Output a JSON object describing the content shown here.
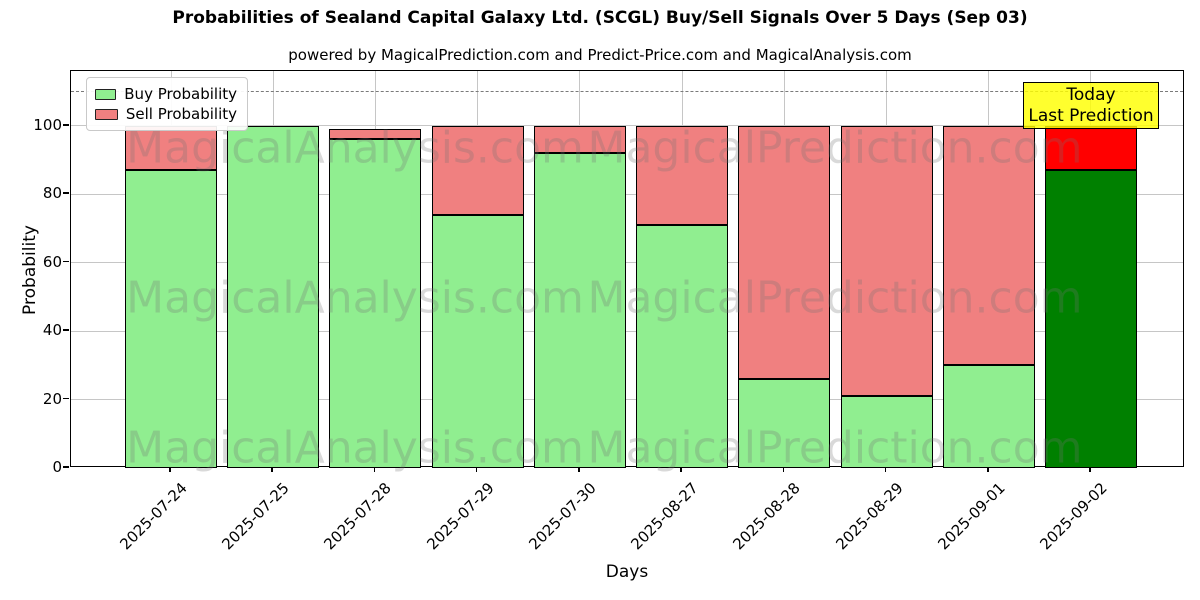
{
  "title": "Probabilities of Sealand Capital Galaxy Ltd. (SCGL) Buy/Sell Signals Over 5 Days (Sep 03)",
  "subtitle": "powered by MagicalPrediction.com and Predict-Price.com and MagicalAnalysis.com",
  "legend": {
    "buy_label": "Buy Probability",
    "sell_label": "Sell Probability"
  },
  "annotation": {
    "line1": "Today",
    "line2": "Last Prediction"
  },
  "watermarks": {
    "left_text": "MagicalAnalysis.com",
    "right_text": "MagicalPrediction.com"
  },
  "colors": {
    "buy": "#90ee90",
    "sell": "#f08080",
    "buy_today": "#008000",
    "sell_today": "#ff0000",
    "annotation_bg": "#ffff00",
    "grid": "#c6c6c6",
    "dashed_line": "#7a7a7a"
  },
  "chart_data": {
    "type": "bar",
    "stacked": true,
    "title": "Probabilities of Sealand Capital Galaxy Ltd. (SCGL) Buy/Sell Signals Over 5 Days (Sep 03)",
    "xlabel": "Days",
    "ylabel": "Probability",
    "categories": [
      "2025-07-24",
      "2025-07-25",
      "2025-07-28",
      "2025-07-29",
      "2025-07-30",
      "2025-08-27",
      "2025-08-28",
      "2025-08-29",
      "2025-09-01",
      "2025-09-02"
    ],
    "series": [
      {
        "name": "Buy Probability",
        "values": [
          87,
          100,
          96,
          74,
          92,
          71,
          26,
          21,
          30,
          87
        ]
      },
      {
        "name": "Sell Probability",
        "values": [
          13,
          0,
          3,
          26,
          8,
          29,
          74,
          79,
          70,
          13
        ]
      }
    ],
    "today_index": 9,
    "yticks": [
      0,
      20,
      40,
      60,
      80,
      100
    ],
    "ylim": [
      0,
      116
    ],
    "dashed_line_y": 110,
    "grid": true,
    "legend_position": "upper left"
  }
}
